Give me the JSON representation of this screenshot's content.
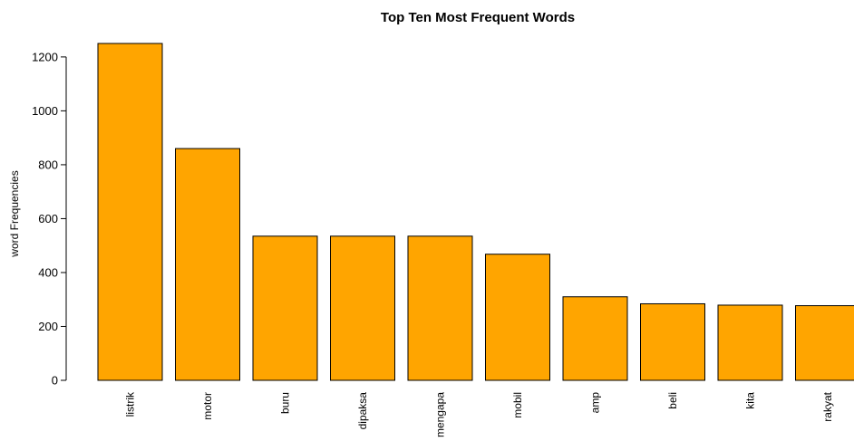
{
  "chart_data": {
    "type": "bar",
    "title": "Top Ten Most Frequent Words",
    "xlabel": "",
    "ylabel": "word Frequencies",
    "categories": [
      "listrik",
      "motor",
      "buru",
      "dipaksa",
      "mengapa",
      "mobil",
      "amp",
      "beli",
      "kita",
      "rakyat"
    ],
    "values": [
      1250,
      860,
      535,
      535,
      535,
      468,
      310,
      284,
      279,
      277
    ],
    "ylim": [
      0,
      1250
    ],
    "yticks": [
      0,
      200,
      400,
      600,
      800,
      1000,
      1200
    ],
    "grid": false,
    "legend": "none",
    "bar_color": "#FFA500",
    "bar_border_color": "#000000"
  }
}
